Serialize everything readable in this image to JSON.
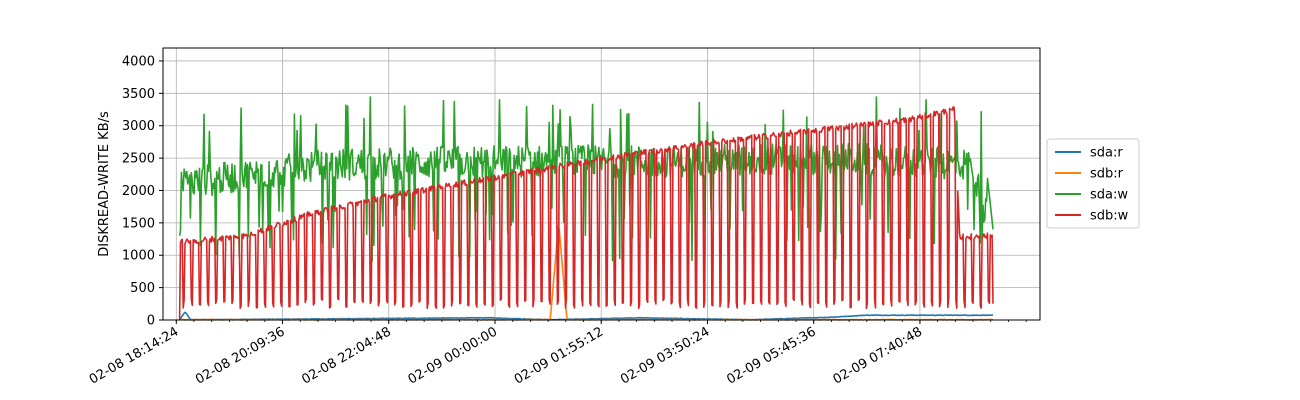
{
  "chart_data": {
    "type": "line",
    "title": "",
    "xlabel": "",
    "ylabel": "DISKREAD-WRITE KB/s",
    "ylim": [
      0,
      4200
    ],
    "y_ticks": [
      0,
      500,
      1000,
      1500,
      2000,
      2500,
      3000,
      3500,
      4000
    ],
    "x_ticks": [
      "02-08 18:14:24",
      "02-08 20:09:36",
      "02-08 22:04:48",
      "02-09 00:00:00",
      "02-09 01:55:12",
      "02-09 03:50:24",
      "02-09 05:45:36",
      "02-09 07:40:48"
    ],
    "x_range_hours": [
      -6.0,
      9.85
    ],
    "data_range_hours": [
      -5.7,
      9.0
    ],
    "grid": true,
    "legend_position": "right",
    "series": [
      {
        "name": "sda:r",
        "color": "#1f77b4",
        "description": "near zero with small spikes",
        "keypoints_hours": [
          -5.7,
          -5.6,
          -5.5,
          -0.1,
          1.0,
          2.6,
          4.6,
          6.1,
          6.7
        ],
        "keypoints_values": [
          0,
          120,
          0,
          30,
          0,
          30,
          0,
          40,
          70
        ]
      },
      {
        "name": "sdb:r",
        "color": "#ff7f0e",
        "description": "near zero with one spike",
        "keypoints_hours": [
          -5.7,
          1.0,
          1.15,
          1.3,
          1.5,
          9.0
        ],
        "keypoints_values": [
          0,
          0,
          1500,
          0,
          0,
          0
        ]
      },
      {
        "name": "sda:w",
        "color": "#2ca02c",
        "description": "noisy around 2300-2500 with spikes to ~3400 and drops to ~900",
        "keypoints_hours": [
          -5.7,
          -3.0,
          0.0,
          3.0,
          6.0,
          8.6,
          9.0
        ],
        "keypoints_values": [
          2100,
          2400,
          2450,
          2450,
          2500,
          2400,
          1300
        ]
      },
      {
        "name": "sdb:w",
        "color": "#d62728",
        "description": "rising baseline with periodic drops to ~200",
        "keypoints_hours": [
          -5.7,
          -4.5,
          -3.3,
          -2.0,
          0.0,
          2.0,
          4.0,
          6.0,
          7.5,
          8.3,
          8.4,
          9.0
        ],
        "keypoints_values": [
          1200,
          1300,
          1650,
          1900,
          2200,
          2500,
          2750,
          2950,
          3100,
          3250,
          1280,
          1300
        ]
      }
    ]
  }
}
